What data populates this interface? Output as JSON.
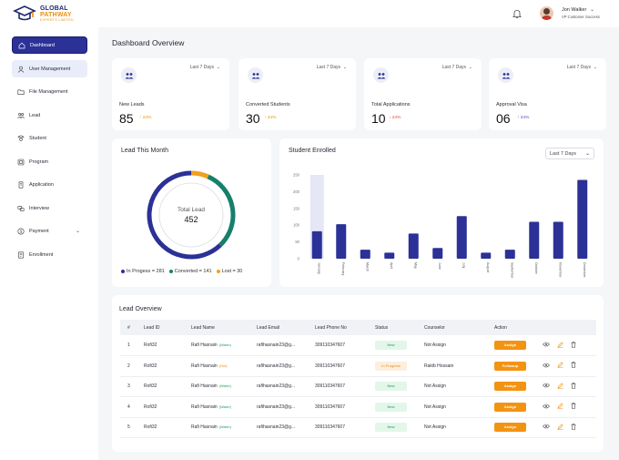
{
  "brand": {
    "line1": "GLOBAL",
    "line2": "PATHWAY",
    "line3": "EXPERTS LIMITED"
  },
  "header": {
    "user_name": "Jon Walker",
    "user_role": "VP Customer Success"
  },
  "sidebar": {
    "items": [
      {
        "label": "Dashboard",
        "icon": "home-icon"
      },
      {
        "label": "User Management",
        "icon": "user-icon"
      },
      {
        "label": "File Management",
        "icon": "folder-icon"
      },
      {
        "label": "Lead",
        "icon": "users-icon"
      },
      {
        "label": "Student",
        "icon": "student-icon"
      },
      {
        "label": "Program",
        "icon": "program-icon"
      },
      {
        "label": "Application",
        "icon": "application-icon"
      },
      {
        "label": "Interview",
        "icon": "interview-icon"
      },
      {
        "label": "Payment",
        "icon": "dollar-icon"
      },
      {
        "label": "Enrollment",
        "icon": "enrollment-icon"
      }
    ]
  },
  "page": {
    "title": "Dashboard Overview"
  },
  "stats": [
    {
      "label": "New Leads",
      "value": "85",
      "trend": "↑ 24%",
      "range": "Last 7 Days"
    },
    {
      "label": "Converted Students",
      "value": "30",
      "trend": "↑ 24%",
      "range": "Last 7 Days"
    },
    {
      "label": "Total Applications",
      "value": "10",
      "trend": "↓ 24%",
      "range": "Last 7 Days"
    },
    {
      "label": "Approval Visa",
      "value": "06",
      "trend": "↑ 24%",
      "range": "Last 7 Days"
    }
  ],
  "lead_month": {
    "title": "Lead  This Month",
    "total_label": "Total Lead",
    "total_value": "452",
    "legend": [
      "In Progess = 281",
      "Converted = 141",
      "Lost = 30"
    ]
  },
  "enrolled": {
    "title": "Student Enrolled",
    "range": "Last 7 Days"
  },
  "chart_data": [
    {
      "type": "pie",
      "labels": [
        "In Progess",
        "Converted",
        "Lost"
      ],
      "values": [
        281,
        141,
        30
      ],
      "colors": [
        "#2b3196",
        "#16806b",
        "#f0a11f"
      ],
      "center_label": "Total Lead",
      "center_value": 452
    },
    {
      "type": "bar",
      "title": "Student Enrolled",
      "categories": [
        "January",
        "February",
        "March",
        "April",
        "May",
        "June",
        "July",
        "August",
        "September",
        "October",
        "November",
        "December"
      ],
      "values": [
        82,
        103,
        27,
        18,
        75,
        32,
        127,
        18,
        27,
        110,
        110,
        235
      ],
      "ylim": [
        0,
        250
      ],
      "yticks": [
        0,
        50,
        100,
        150,
        200,
        250
      ],
      "highlight_index": 0,
      "bar_color": "#2b3196"
    }
  ],
  "table": {
    "title": "Lead  Overview",
    "headers": [
      "#",
      "Lead ID",
      "Lead Name",
      "Lead Email",
      "Lead  Phone No",
      "Status",
      "Counselor",
      "Action"
    ],
    "rows": [
      {
        "no": "1",
        "id": "Rofi32",
        "name": "Rafi Hasnain",
        "tag": "(Warm)",
        "email": "rafihasnain23@g...",
        "phone": "309110347607",
        "status": "New",
        "counselor": "Not Assign",
        "action": "Assign"
      },
      {
        "no": "2",
        "id": "Rofi32",
        "name": "Rafi Hasnain",
        "tag": "(Hot)",
        "email": "rafihasnain23@g...",
        "phone": "309110347607",
        "status": "In Progress",
        "counselor": "Rakib Hossain",
        "action": "Followup"
      },
      {
        "no": "3",
        "id": "Rofi32",
        "name": "Rafi Hasnain",
        "tag": "(Warm)",
        "email": "rafihasnain23@g...",
        "phone": "309110347607",
        "status": "New",
        "counselor": "Not Assign",
        "action": "Assign"
      },
      {
        "no": "4",
        "id": "Rofi32",
        "name": "Rafi Hasnain",
        "tag": "(Warm)",
        "email": "rafihasnain23@g...",
        "phone": "309110347607",
        "status": "New",
        "counselor": "Not Assign",
        "action": "Assign"
      },
      {
        "no": "5",
        "id": "Rofi32",
        "name": "Rafi Hasnain",
        "tag": "(Warm)",
        "email": "rafihasnain23@g...",
        "phone": "309110347607",
        "status": "New",
        "counselor": "Not Assign",
        "action": "Assign"
      }
    ]
  },
  "colors": {
    "primary": "#2b3196",
    "accent": "#f39312",
    "green": "#16806b"
  }
}
